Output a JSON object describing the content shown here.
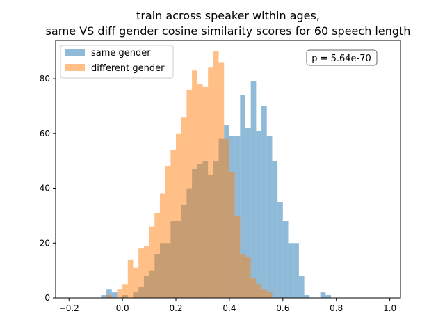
{
  "chart_data": {
    "type": "histogram",
    "title_line1": "train across speaker within ages,",
    "title_line2": "same VS diff gender cosine similarity scores for 60 speech length",
    "xlabel": "",
    "ylabel": "",
    "xlim": [
      -0.25,
      1.04
    ],
    "ylim": [
      0,
      94
    ],
    "xticks": [
      -0.2,
      0.0,
      0.2,
      0.4,
      0.6,
      0.8,
      1.0
    ],
    "xtick_labels": [
      "−0.2",
      "0.0",
      "0.2",
      "0.4",
      "0.6",
      "0.8",
      "1.0"
    ],
    "yticks": [
      0,
      20,
      40,
      60,
      80
    ],
    "ytick_labels": [
      "0",
      "20",
      "40",
      "60",
      "80"
    ],
    "grid": false,
    "legend_position": "top-left",
    "bin_start": -0.08,
    "bin_width": 0.02,
    "series": [
      {
        "name": "same gender",
        "color": "#1f77b4",
        "alpha": 0.5,
        "counts": [
          1,
          3,
          2,
          0,
          1,
          0,
          2,
          4,
          8,
          10,
          16,
          20,
          20,
          28,
          28,
          34,
          40,
          47,
          49,
          50,
          45,
          50,
          58,
          63,
          59,
          59,
          74,
          62,
          79,
          61,
          70,
          59,
          50,
          35,
          28,
          20,
          20,
          8,
          1,
          0,
          0,
          2,
          1
        ]
      },
      {
        "name": "different gender",
        "color": "#ff7f0e",
        "alpha": 0.5,
        "counts": [
          0,
          1,
          0,
          3,
          5,
          14,
          11,
          18,
          19,
          26,
          31,
          38,
          48,
          54,
          60,
          66,
          76,
          83,
          78,
          77,
          84,
          90,
          86,
          58,
          46,
          30,
          16,
          15,
          7,
          5,
          3,
          2
        ]
      }
    ],
    "annotation": "p = 5.64e-70"
  }
}
